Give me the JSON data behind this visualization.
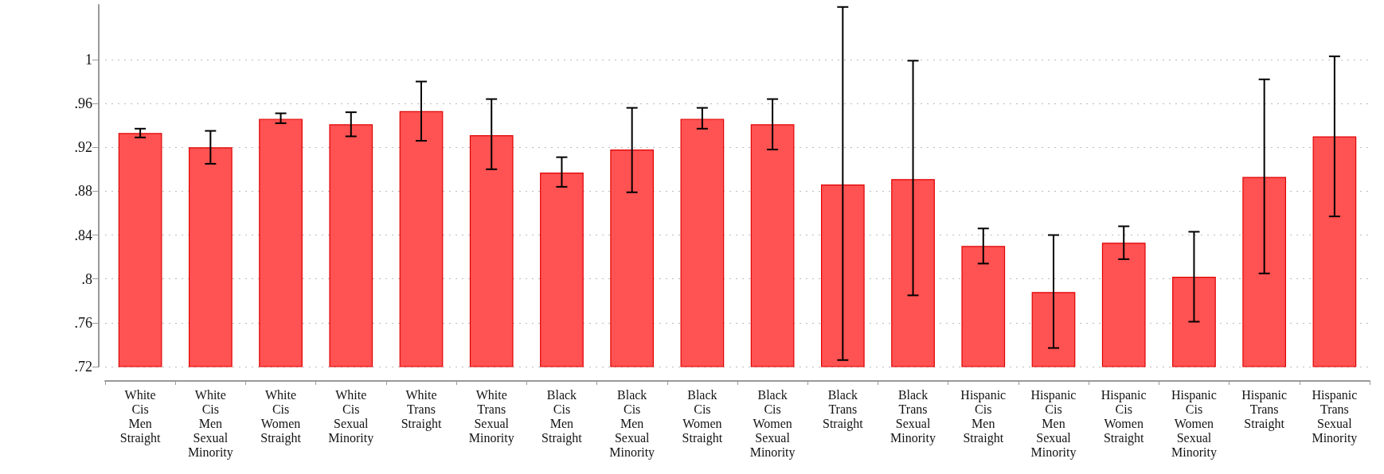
{
  "chart_data": {
    "type": "bar",
    "categories": [
      "White\nCis\nMen\nStraight",
      "White\nCis\nMen\nSexual\nMinority",
      "White\nCis\nWomen\nStraight",
      "White\nCis\nSexual\nMinority",
      "White\nTrans\nStraight",
      "White\nTrans\nSexual\nMinority",
      "Black\nCis\nMen\nStraight",
      "Black\nCis\nMen\nSexual\nMinority",
      "Black\nCis\nWomen\nStraight",
      "Black\nCis\nWomen\nSexual\nMinority",
      "Black\nTrans\nStraight",
      "Black\nTrans\nSexual\nMinority",
      "Hispanic\nCis\nMen\nStraight",
      "Hispanic\nCis\nMen\nSexual\nMinority",
      "Hispanic\nCis\nWomen\nStraight",
      "Hispanic\nCis\nWomen\nSexual\nMinority",
      "Hispanic\nTrans\nStraight",
      "Hispanic\nTrans\nSexual\nMinority"
    ],
    "values": [
      0.933,
      0.92,
      0.946,
      0.941,
      0.953,
      0.931,
      0.897,
      0.918,
      0.946,
      0.941,
      0.886,
      0.891,
      0.83,
      0.788,
      0.833,
      0.802,
      0.893,
      0.93
    ],
    "errors": [
      [
        0.929,
        0.937
      ],
      [
        0.905,
        0.935
      ],
      [
        0.942,
        0.951
      ],
      [
        0.93,
        0.952
      ],
      [
        0.926,
        0.98
      ],
      [
        0.9,
        0.964
      ],
      [
        0.884,
        0.911
      ],
      [
        0.879,
        0.956
      ],
      [
        0.937,
        0.956
      ],
      [
        0.918,
        0.964
      ],
      [
        0.726,
        1.048
      ],
      [
        0.785,
        0.999
      ],
      [
        0.814,
        0.846
      ],
      [
        0.737,
        0.84
      ],
      [
        0.818,
        0.848
      ],
      [
        0.761,
        0.843
      ],
      [
        0.805,
        0.982
      ],
      [
        0.857,
        1.003
      ]
    ],
    "color": "#ff5252",
    "ylim": [
      0.72,
      1.05
    ],
    "yticks": [
      {
        "value": 0.72,
        "label": ".72"
      },
      {
        "value": 0.76,
        "label": ".76"
      },
      {
        "value": 0.8,
        "label": ".8"
      },
      {
        "value": 0.84,
        "label": ".84"
      },
      {
        "value": 0.88,
        "label": ".88"
      },
      {
        "value": 0.92,
        "label": ".92"
      },
      {
        "value": 0.96,
        "label": ".96"
      },
      1
    ],
    "grid": "y"
  }
}
